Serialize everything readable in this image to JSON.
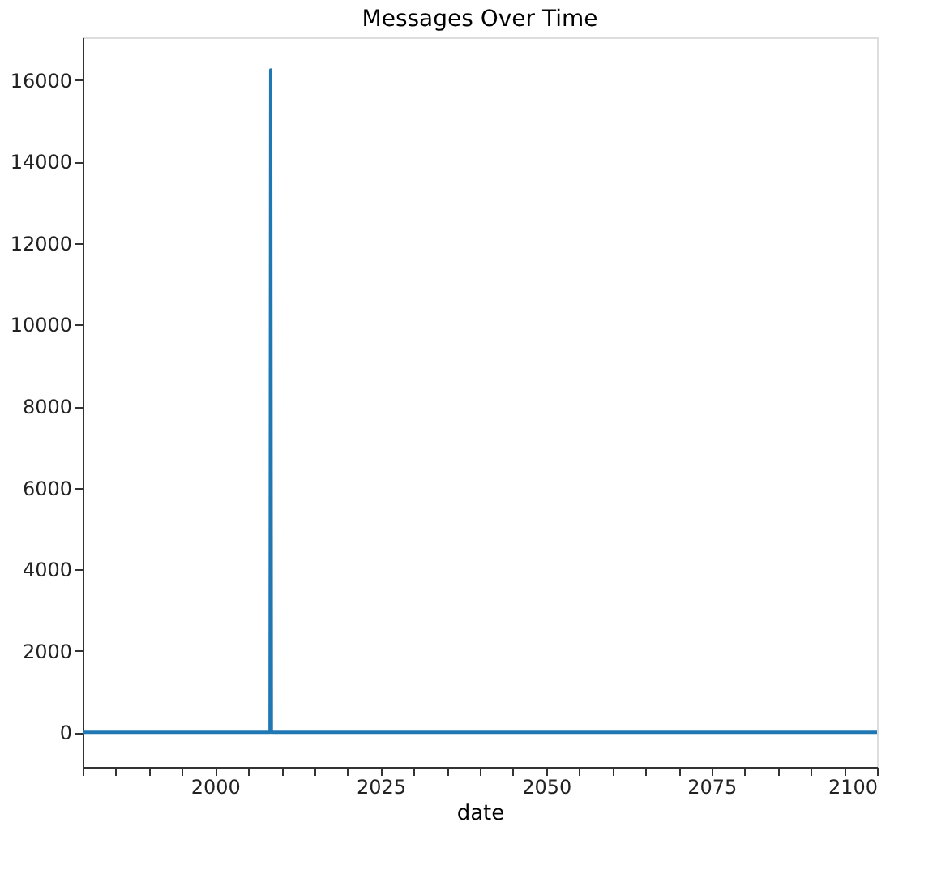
{
  "chart_data": {
    "type": "line",
    "title": "Messages Over Time",
    "xlabel": "date",
    "x": [
      1980,
      2008.3,
      2008.4,
      2008.5,
      2100
    ],
    "series": [
      {
        "color": "#1f77b4",
        "values": [
          0,
          0,
          16250,
          0,
          0
        ]
      }
    ],
    "xlim": [
      1980,
      2100
    ],
    "xticks": [
      {
        "value": 1980,
        "label": null
      },
      {
        "value": 1985,
        "label": null
      },
      {
        "value": 1990,
        "label": null
      },
      {
        "value": 1995,
        "label": null
      },
      2000,
      {
        "value": 2005,
        "label": null
      },
      {
        "value": 2010,
        "label": null
      },
      {
        "value": 2015,
        "label": null
      },
      {
        "value": 2020,
        "label": null
      },
      2025,
      {
        "value": 2030,
        "label": null
      },
      {
        "value": 2035,
        "label": null
      },
      {
        "value": 2040,
        "label": null
      },
      {
        "value": 2045,
        "label": null
      },
      2050,
      {
        "value": 2055,
        "label": null
      },
      {
        "value": 2060,
        "label": null
      },
      {
        "value": 2065,
        "label": null
      },
      {
        "value": 2070,
        "label": null
      },
      2075,
      {
        "value": 2080,
        "label": null
      },
      {
        "value": 2085,
        "label": null
      },
      {
        "value": 2090,
        "label": null
      },
      {
        "value": 2095,
        "label": null
      },
      2100
    ],
    "ylim": [
      -850,
      17050
    ],
    "yticks": [
      0,
      2000,
      4000,
      6000,
      8000,
      10000,
      12000,
      14000,
      16000
    ],
    "grid": false,
    "marker": "none",
    "line_style": "solid"
  }
}
